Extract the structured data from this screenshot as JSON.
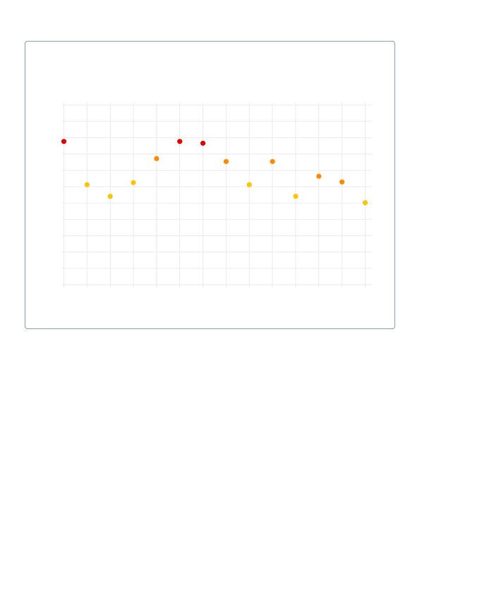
{
  "chart_data": {
    "type": "scatter",
    "title": "",
    "xlabel": "",
    "ylabel": "",
    "x": [
      0,
      1,
      2,
      3,
      4,
      5,
      6,
      7,
      8,
      9,
      10,
      11,
      12,
      13
    ],
    "values": [
      8.77,
      6.12,
      5.41,
      6.25,
      7.72,
      8.77,
      8.66,
      7.54,
      6.12,
      7.54,
      5.41,
      6.64,
      6.29,
      5.02
    ],
    "point_colors": [
      "#e00000",
      "#ffc400",
      "#ffc400",
      "#ffc400",
      "#ff8a00",
      "#e00000",
      "#e00000",
      "#ff8a00",
      "#ffc400",
      "#ff8a00",
      "#ffc400",
      "#ff8a00",
      "#ff8a00",
      "#ffc400"
    ],
    "xlim": [
      0,
      13
    ],
    "ylim": [
      0,
      11
    ],
    "grid": true,
    "grid_color": "#ebebeb",
    "border_color": "#7fa2b2"
  }
}
